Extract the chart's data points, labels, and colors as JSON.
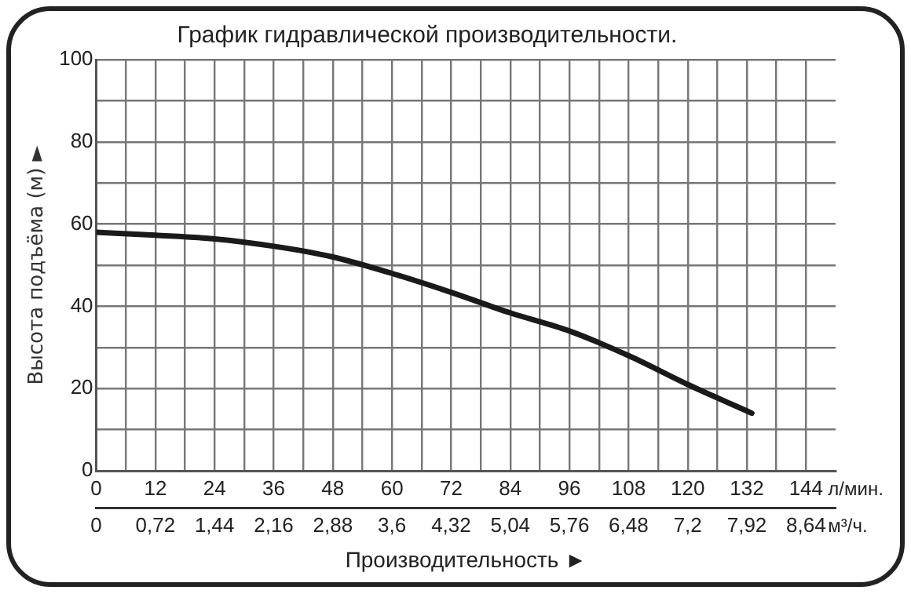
{
  "chart_data": {
    "type": "line",
    "title": "График гидравлической производительности.",
    "xlabel": "Производительность ►",
    "ylabel": "Высота подъёма (м) ►",
    "annotations": [
      "л/мин.",
      "м³/ч."
    ],
    "x": [
      0,
      12,
      24,
      36,
      48,
      60,
      72,
      84,
      96,
      108,
      120,
      133
    ],
    "series": [
      {
        "color": "#1a1a1a",
        "values": [
          58,
          57.3,
          56.4,
          54.6,
          52,
          48,
          43.4,
          38.4,
          34,
          28,
          21,
          14
        ]
      }
    ],
    "xlim": [
      0,
      150
    ],
    "xticks": [
      0,
      {
        "value": 6,
        "label": null
      },
      12,
      {
        "value": 18,
        "label": null
      },
      24,
      {
        "value": 30,
        "label": null
      },
      36,
      {
        "value": 42,
        "label": null
      },
      48,
      {
        "value": 54,
        "label": null
      },
      60,
      {
        "value": 66,
        "label": null
      },
      72,
      {
        "value": 78,
        "label": null
      },
      84,
      {
        "value": 90,
        "label": null
      },
      96,
      {
        "value": 102,
        "label": null
      },
      108,
      {
        "value": 114,
        "label": null
      },
      120,
      {
        "value": 126,
        "label": null
      },
      132,
      {
        "value": 138,
        "label": null
      },
      144
    ],
    "x2lim": [
      0,
      9
    ],
    "x2ticks": [
      0,
      {
        "value": 0.72,
        "label": "0,72"
      },
      {
        "value": 1.44,
        "label": "1,44"
      },
      {
        "value": 2.16,
        "label": "2,16"
      },
      {
        "value": 2.88,
        "label": "2,88"
      },
      {
        "value": 3.6,
        "label": "3,6"
      },
      {
        "value": 4.32,
        "label": "4,32"
      },
      {
        "value": 5.04,
        "label": "5,04"
      },
      {
        "value": 5.76,
        "label": "5,76"
      },
      {
        "value": 6.48,
        "label": "6,48"
      },
      {
        "value": 7.2,
        "label": "7,2"
      },
      {
        "value": 7.92,
        "label": "7,92"
      },
      {
        "value": 8.64,
        "label": "8,64"
      }
    ],
    "ylim": [
      0,
      100
    ],
    "yticks": [
      0,
      {
        "value": 10,
        "label": null
      },
      20,
      {
        "value": 30,
        "label": null
      },
      40,
      {
        "value": 50,
        "label": null
      },
      60,
      {
        "value": 70,
        "label": null
      },
      80,
      {
        "value": 90,
        "label": null
      },
      100
    ],
    "grid": true,
    "legend": false,
    "marker": "none",
    "line_style": "solid"
  }
}
